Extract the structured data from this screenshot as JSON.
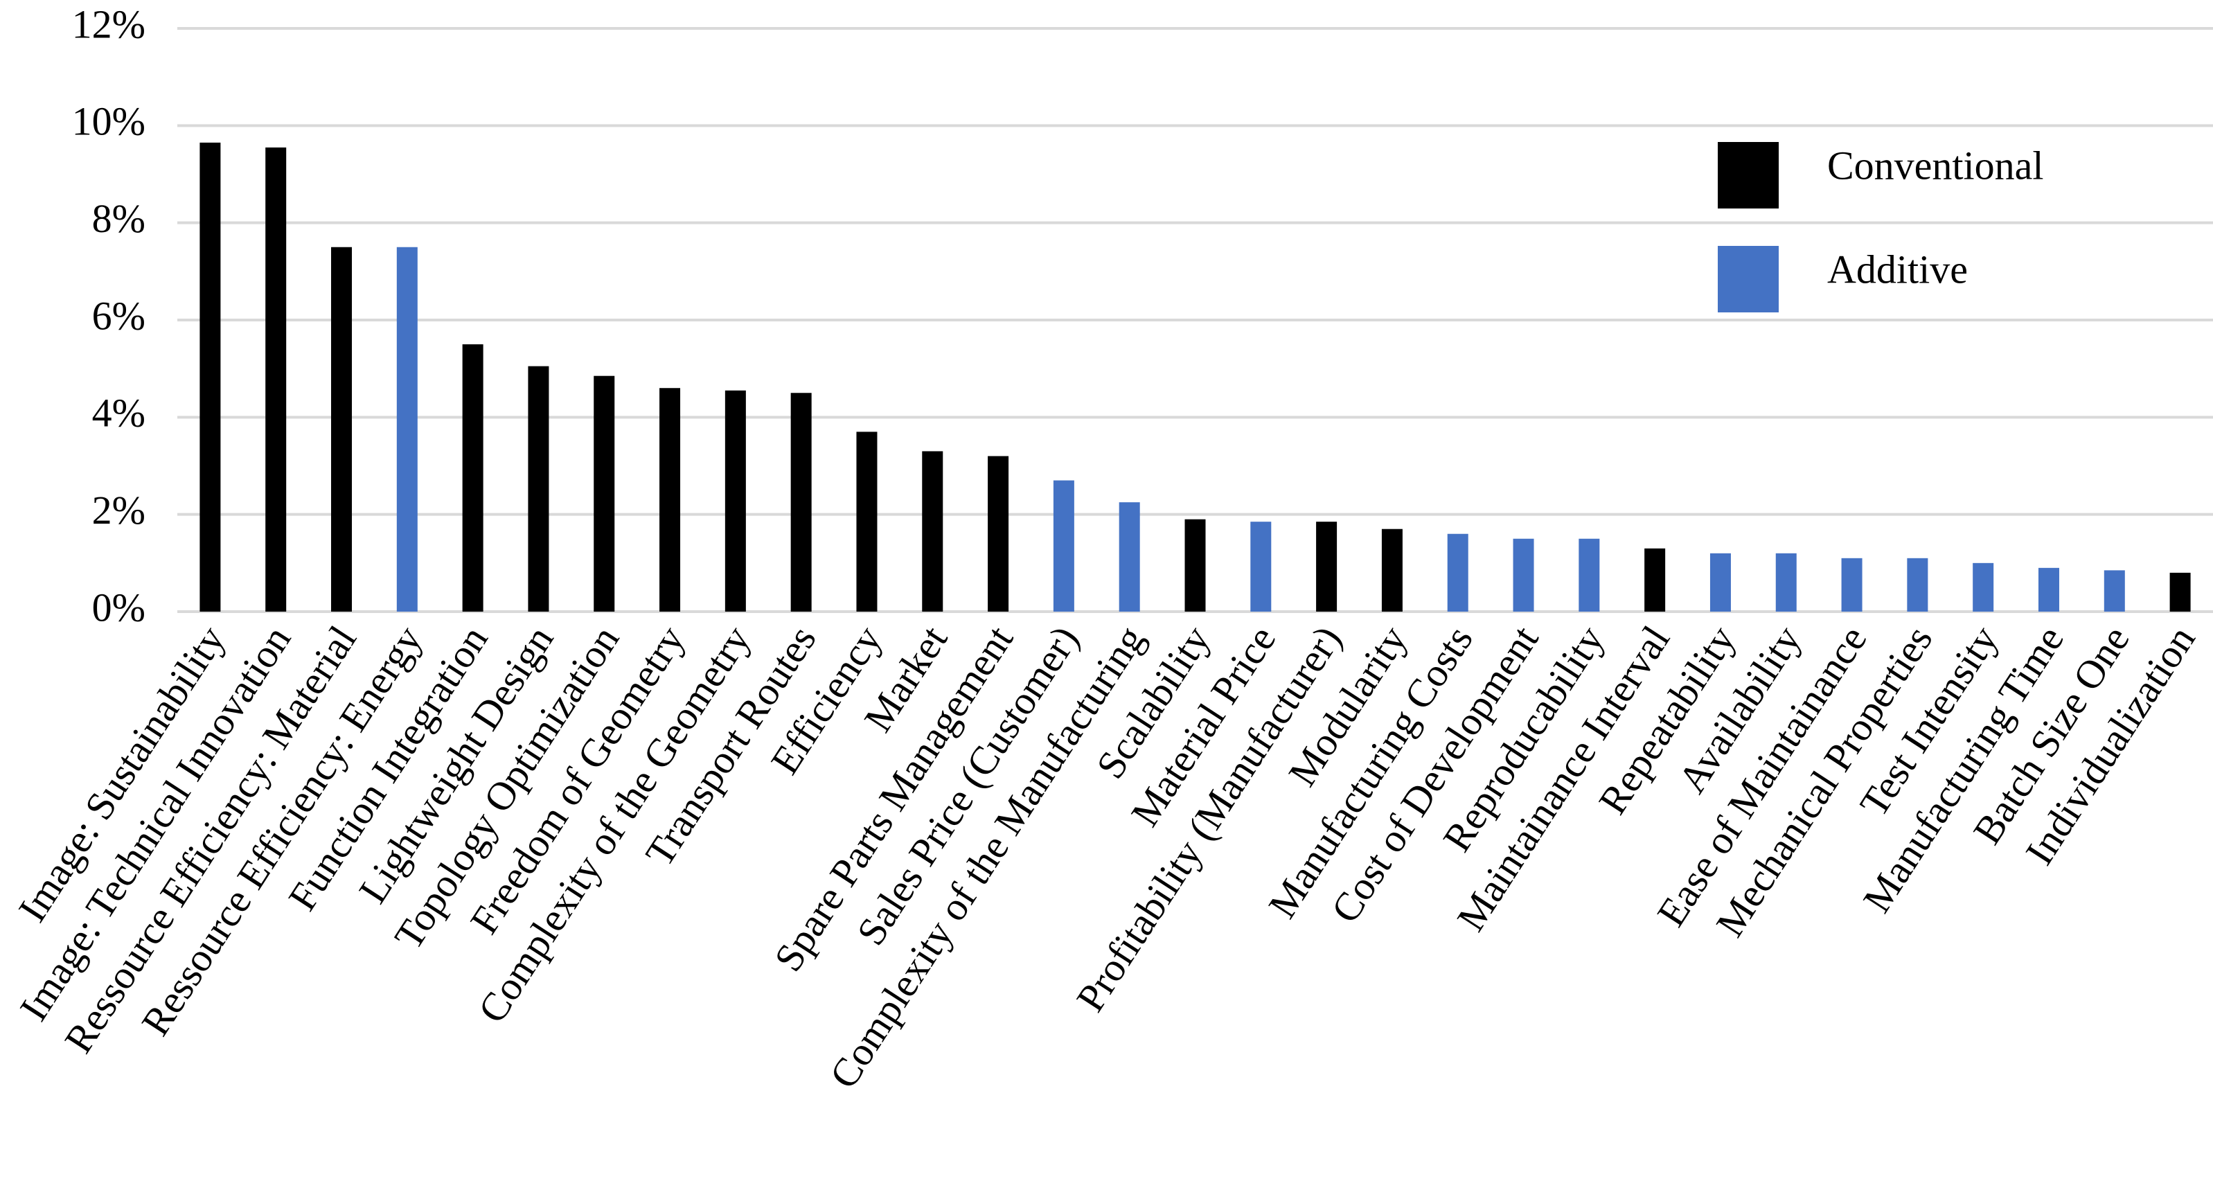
{
  "chart_data": {
    "type": "bar",
    "categories": [
      "Image: Sustainability",
      "Image: Technical Innovation",
      "Ressource Efficiency: Material",
      "Ressource Efficiency: Energy",
      "Function Integration",
      "Lightweight Design",
      "Topology Optimization",
      "Freedom of Geometry",
      "Complexity of the Geometry",
      "Transport Routes",
      "Efficiency",
      "Market",
      "Spare Parts Management",
      "Sales Price (Customer)",
      "Complexity of the Manufacturing",
      "Scalability",
      "Material Price",
      "Profitability (Manufacturer)",
      "Modularity",
      "Manufacturing Costs",
      "Cost of Development",
      "Reproducability",
      "Maintainance Interval",
      "Repeatability",
      "Availability",
      "Ease of Maintainance",
      "Mechanical Properties",
      "Test Intensity",
      "Manufacturing Time",
      "Batch Size One",
      "Individualization"
    ],
    "series": [
      {
        "name": "Conventional",
        "color": "#000000",
        "values": [
          9.65,
          9.55,
          7.5,
          null,
          5.5,
          5.05,
          4.85,
          4.6,
          4.55,
          4.5,
          3.7,
          3.3,
          3.2,
          null,
          null,
          1.9,
          null,
          1.85,
          1.7,
          null,
          null,
          null,
          1.3,
          null,
          null,
          null,
          null,
          null,
          null,
          null,
          0.8
        ]
      },
      {
        "name": "Additive",
        "color": "#4472c4",
        "values": [
          null,
          null,
          null,
          7.5,
          null,
          null,
          null,
          null,
          null,
          null,
          null,
          null,
          null,
          2.7,
          2.25,
          null,
          1.85,
          null,
          null,
          1.6,
          1.5,
          1.5,
          null,
          1.2,
          1.2,
          1.1,
          1.1,
          1.0,
          0.9,
          0.85,
          null
        ]
      }
    ],
    "ylim": [
      0,
      12
    ],
    "yticks": [
      {
        "value": 0,
        "label": "0%"
      },
      {
        "value": 2,
        "label": "2%"
      },
      {
        "value": 4,
        "label": "4%"
      },
      {
        "value": 6,
        "label": "6%"
      },
      {
        "value": 8,
        "label": "8%"
      },
      {
        "value": 10,
        "label": "10%"
      },
      {
        "value": 12,
        "label": "12%"
      }
    ],
    "grid": true,
    "legend": "upper right"
  }
}
